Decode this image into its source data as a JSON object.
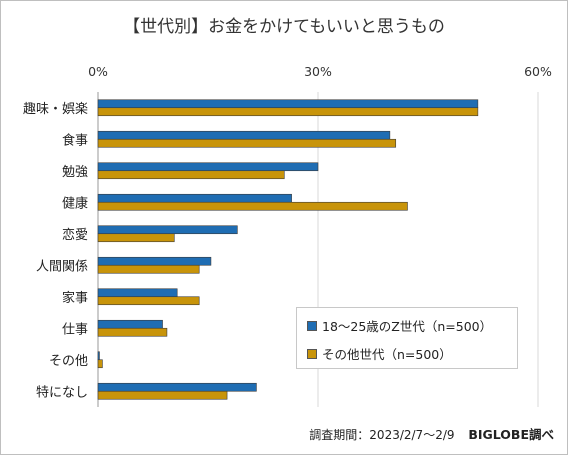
{
  "chart_data": {
    "type": "bar",
    "orientation": "horizontal",
    "title": "【世代別】お金をかけてもいいと思うもの",
    "categories": [
      "趣味・娯楽",
      "食事",
      "勉強",
      "健康",
      "恋愛",
      "人間関係",
      "家事",
      "仕事",
      "その他",
      "特になし"
    ],
    "series": [
      {
        "name": "18～25歳のZ世代（n=500）",
        "color": "#1f6db3",
        "values": [
          51.8,
          39.8,
          30.0,
          26.4,
          19.0,
          15.4,
          10.8,
          8.8,
          0.2,
          21.6
        ]
      },
      {
        "name": "その他世代（n=500）",
        "color": "#c8940a",
        "values": [
          51.8,
          40.6,
          25.4,
          42.2,
          10.4,
          13.8,
          13.8,
          9.4,
          0.6,
          17.6
        ]
      }
    ],
    "xlim": [
      0,
      60
    ],
    "x_ticks": [
      "0%",
      "30%",
      "60%"
    ],
    "xlabel": "",
    "ylabel": "",
    "grid": true,
    "legend_position": "bottom-right"
  },
  "footer": {
    "period": "調査期間：2023/2/7～2/9",
    "brand": "BIGLOBE調べ"
  }
}
